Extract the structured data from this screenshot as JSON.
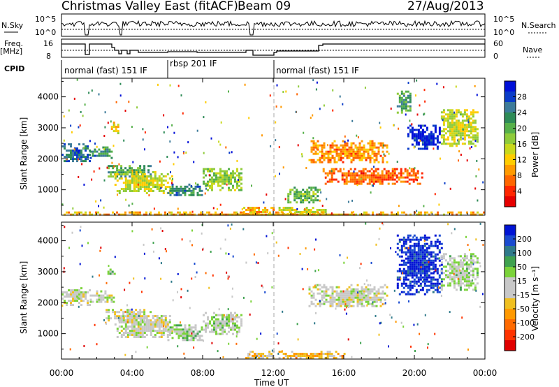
{
  "header": {
    "station": "Christmas Valley East (fitACF)",
    "beam": "Beam 09",
    "date": "27/Aug/2013"
  },
  "strip_panels": {
    "nsky_label": "N.Sky",
    "nsky_ticks": [
      "10^5",
      "10^0"
    ],
    "nsearch_label": "N.Search",
    "nsearch_ticks": [
      "10^5",
      "10^0"
    ],
    "freq_label": "Freq.",
    "freq_unit": "[MHz]",
    "freq_ticks": [
      "16",
      "8"
    ],
    "nave_label": "Nave",
    "nave_ticks": [
      "60",
      "0"
    ],
    "cpid_label": "CPID",
    "cpid_segments": [
      "normal (fast) 151 IF",
      "rbsp 201 IF",
      "normal (fast) 151 IF"
    ]
  },
  "axes": {
    "ylabel": "Slant Range [km]",
    "xlabel": "Time UT",
    "y_ticks": [
      "1000",
      "2000",
      "3000",
      "4000"
    ],
    "x_ticks": [
      "00:00",
      "04:00",
      "08:00",
      "12:00",
      "16:00",
      "20:00",
      "00:00"
    ]
  },
  "colorbars": {
    "power": {
      "label": "Power [dB]",
      "ticks": [
        "28",
        "24",
        "20",
        "16",
        "12",
        "8",
        "4"
      ],
      "colors": [
        "#0010d8",
        "#0a3cc8",
        "#3d7b9a",
        "#2e8b57",
        "#56b04a",
        "#8fcb3a",
        "#c8d81c",
        "#ffcc00",
        "#ff9a00",
        "#ff6600",
        "#ff2600",
        "#e60000"
      ]
    },
    "velocity": {
      "label": "Velocity [m s⁻¹]",
      "ticks": [
        "200",
        "100",
        "50",
        "15",
        "-15",
        "-50",
        "-100",
        "-200"
      ],
      "colors": [
        "#0014d4",
        "#1a4bd0",
        "#2f7a8a",
        "#3fa24f",
        "#7bd33a",
        "#c8c8c8",
        "#c8c8c8",
        "#f0c020",
        "#ff9900",
        "#ff6a00",
        "#ff3300",
        "#e00000"
      ]
    }
  },
  "chart_data": [
    {
      "type": "heatmap",
      "title": "Power",
      "xlabel": "Time UT",
      "ylabel": "Slant Range [km]",
      "xlim": [
        0,
        24
      ],
      "ylim": [
        180,
        4600
      ],
      "colorbar": "Power [dB]",
      "colorbar_range": [
        0,
        30
      ],
      "regions": [
        {
          "t": [
            0.0,
            1.6
          ],
          "range": [
            1900,
            2500
          ],
          "value": 24
        },
        {
          "t": [
            1.6,
            3.0
          ],
          "range": [
            2000,
            2400
          ],
          "value": 22
        },
        {
          "t": [
            2.8,
            3.2
          ],
          "range": [
            2800,
            3200
          ],
          "value": 12
        },
        {
          "t": [
            2.5,
            5.0
          ],
          "range": [
            1400,
            1800
          ],
          "value": 20
        },
        {
          "t": [
            3.0,
            6.3
          ],
          "range": [
            900,
            1600
          ],
          "value": 14
        },
        {
          "t": [
            6.0,
            8.0
          ],
          "range": [
            800,
            1200
          ],
          "value": 22
        },
        {
          "t": [
            8.0,
            10.2
          ],
          "range": [
            1000,
            1700
          ],
          "value": 16
        },
        {
          "t": [
            10.3,
            12.0
          ],
          "range": [
            200,
            450
          ],
          "value": 10
        },
        {
          "t": [
            12.3,
            15.0
          ],
          "range": [
            200,
            450
          ],
          "value": 14
        },
        {
          "t": [
            12.8,
            14.6
          ],
          "range": [
            600,
            1100
          ],
          "value": 18
        },
        {
          "t": [
            14.0,
            18.5
          ],
          "range": [
            1900,
            2600
          ],
          "value": 8
        },
        {
          "t": [
            14.8,
            20.5
          ],
          "range": [
            1200,
            1700
          ],
          "value": 6
        },
        {
          "t": [
            19.0,
            19.8
          ],
          "range": [
            3500,
            4200
          ],
          "value": 20
        },
        {
          "t": [
            19.6,
            21.5
          ],
          "range": [
            2300,
            3100
          ],
          "value": 28
        },
        {
          "t": [
            21.5,
            23.6
          ],
          "range": [
            2400,
            3600
          ],
          "value": 14
        },
        {
          "t": [
            0.0,
            24.0
          ],
          "range": [
            180,
            300
          ],
          "value": 10
        }
      ]
    },
    {
      "type": "heatmap",
      "title": "Velocity",
      "xlabel": "Time UT",
      "ylabel": "Slant Range [km]",
      "xlim": [
        0,
        24
      ],
      "ylim": [
        180,
        4600
      ],
      "colorbar": "Velocity [m s⁻¹]",
      "colorbar_range": [
        -250,
        250
      ],
      "regions": [
        {
          "t": [
            0.0,
            1.6
          ],
          "range": [
            1900,
            2500
          ],
          "value": 0
        },
        {
          "t": [
            1.6,
            3.0
          ],
          "range": [
            2000,
            2400
          ],
          "value": 0
        },
        {
          "t": [
            2.6,
            3.0
          ],
          "range": [
            2900,
            3100
          ],
          "value": 80
        },
        {
          "t": [
            2.5,
            5.0
          ],
          "range": [
            1400,
            1800
          ],
          "value": 0
        },
        {
          "t": [
            3.0,
            6.3
          ],
          "range": [
            900,
            1600
          ],
          "value": 0
        },
        {
          "t": [
            6.0,
            8.0
          ],
          "range": [
            800,
            1300
          ],
          "value": 50
        },
        {
          "t": [
            8.0,
            10.2
          ],
          "range": [
            1000,
            1700
          ],
          "value": 40
        },
        {
          "t": [
            10.3,
            12.0
          ],
          "range": [
            200,
            450
          ],
          "value": -50
        },
        {
          "t": [
            12.3,
            16.0
          ],
          "range": [
            200,
            450
          ],
          "value": -70
        },
        {
          "t": [
            14.0,
            18.5
          ],
          "range": [
            1900,
            2600
          ],
          "value": 0
        },
        {
          "t": [
            19.0,
            21.5
          ],
          "range": [
            2300,
            4200
          ],
          "value": 220
        },
        {
          "t": [
            21.5,
            23.6
          ],
          "range": [
            2400,
            3600
          ],
          "value": 30
        }
      ]
    }
  ]
}
